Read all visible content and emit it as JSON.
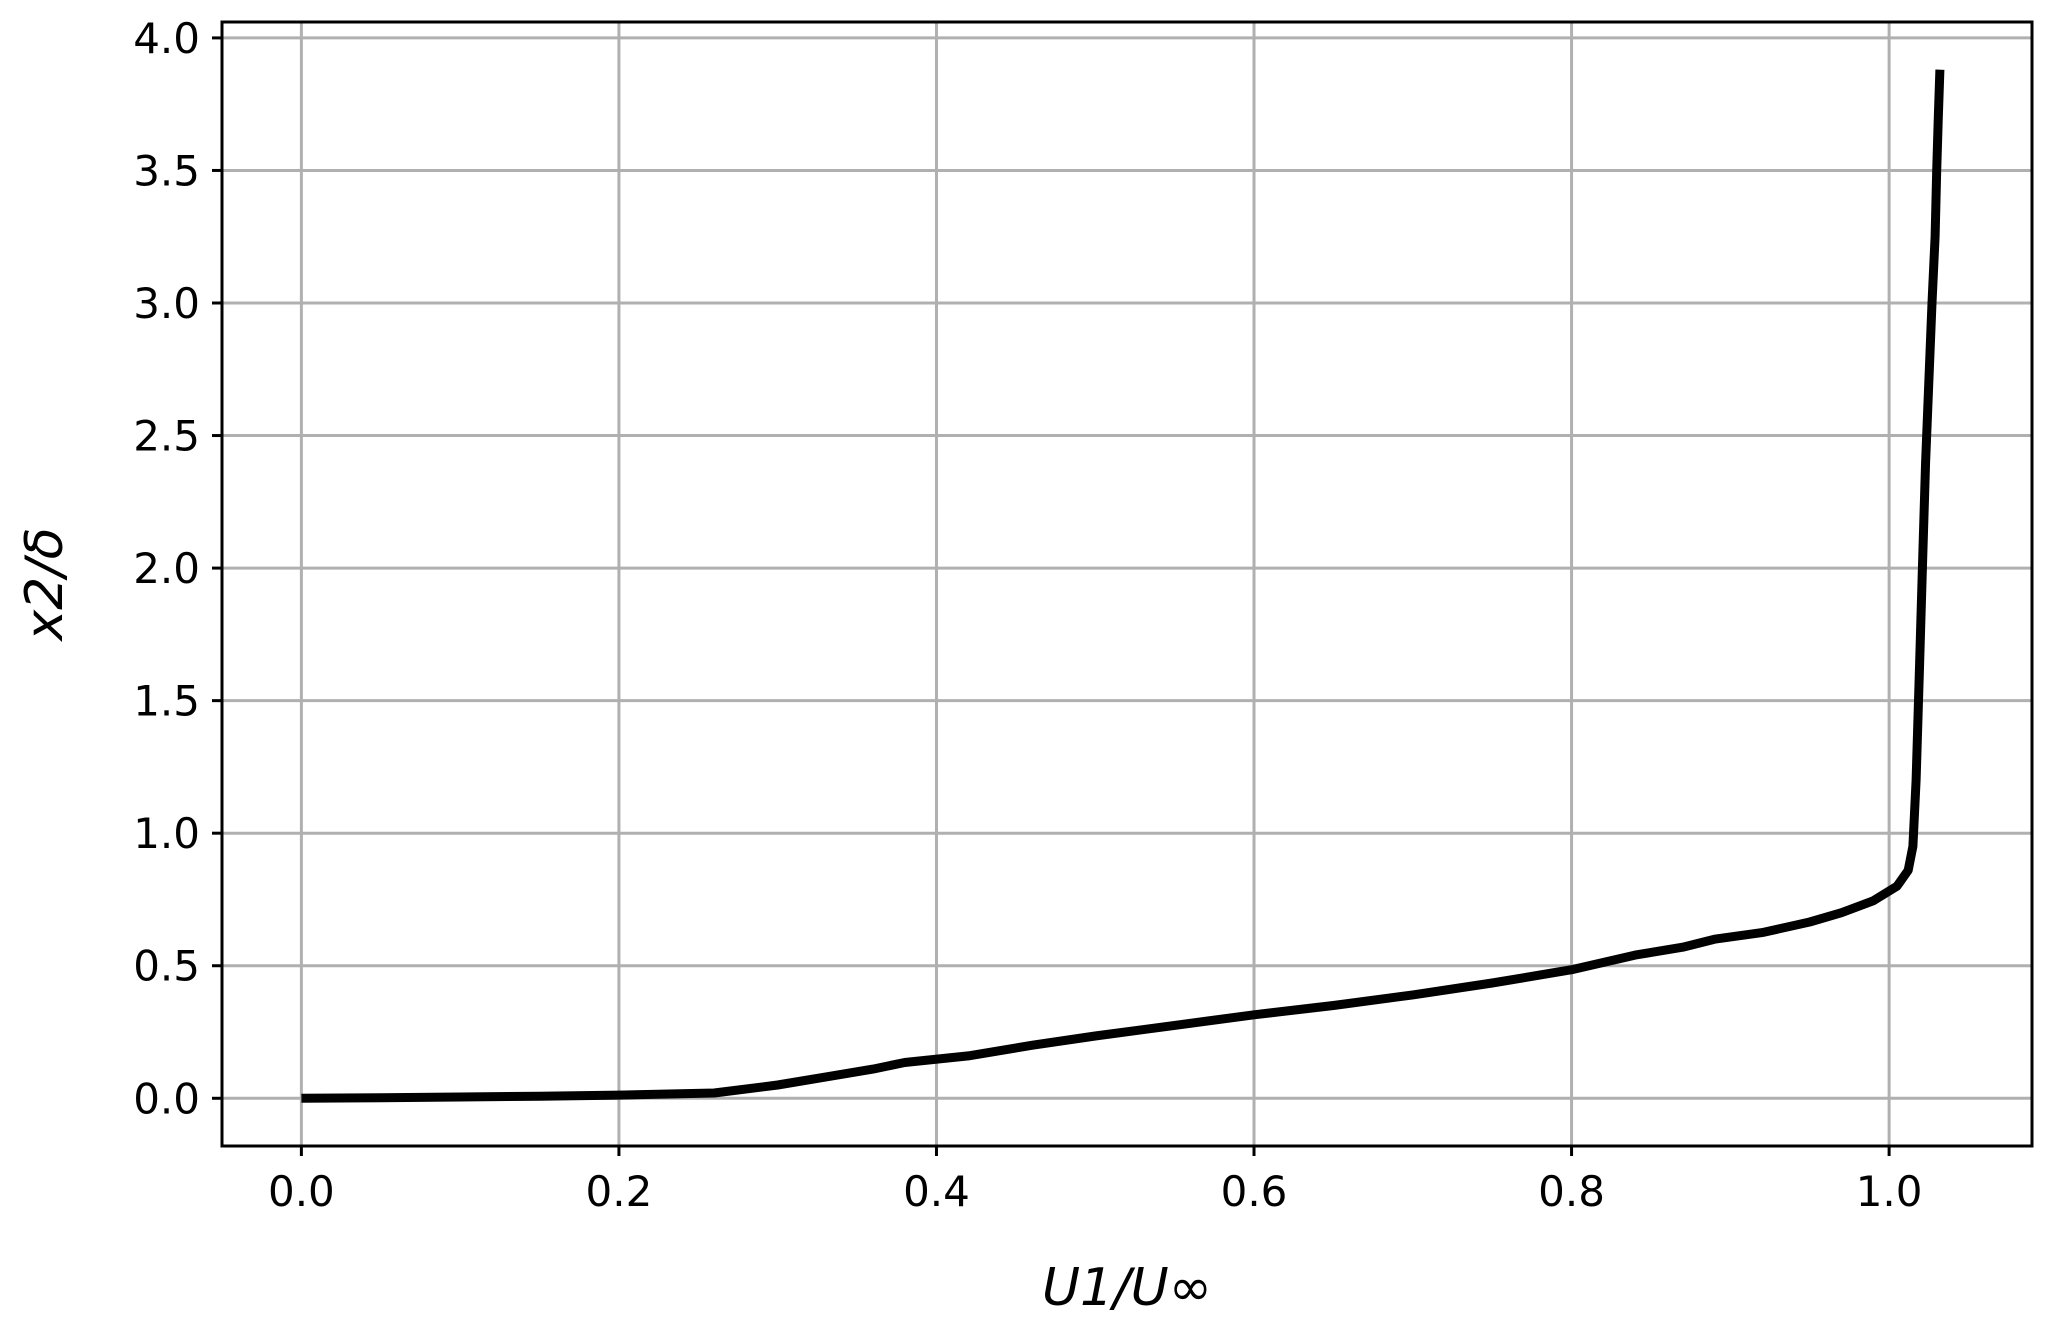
{
  "chart_data": {
    "type": "line",
    "title": "",
    "xlabel": "U1/U∞",
    "ylabel": "x2/δ",
    "xlim": [
      -0.05,
      1.09
    ],
    "ylim": [
      -0.18,
      4.06
    ],
    "xticks": [
      0.0,
      0.2,
      0.4,
      0.6,
      0.8,
      1.0
    ],
    "yticks": [
      0.0,
      0.5,
      1.0,
      1.5,
      2.0,
      2.5,
      3.0,
      3.5,
      4.0
    ],
    "xtick_labels": [
      "0.0",
      "0.2",
      "0.4",
      "0.6",
      "0.8",
      "1.0"
    ],
    "ytick_labels": [
      "0.0",
      "0.5",
      "1.0",
      "1.5",
      "2.0",
      "2.5",
      "3.0",
      "3.5",
      "4.0"
    ],
    "grid": true,
    "legend": "none",
    "line_color": "#000000",
    "grid_color": "#b0b0b0",
    "series": [
      {
        "x": [
          0.0,
          0.05,
          0.1,
          0.15,
          0.2,
          0.26,
          0.3,
          0.33,
          0.36,
          0.38,
          0.42,
          0.46,
          0.5,
          0.55,
          0.6,
          0.65,
          0.7,
          0.75,
          0.8,
          0.84,
          0.87,
          0.89,
          0.92,
          0.95,
          0.97,
          0.99,
          1.005,
          1.012,
          1.015,
          1.017,
          1.019,
          1.021,
          1.023,
          1.025,
          1.027,
          1.029,
          1.03,
          1.031,
          1.032
        ],
        "y": [
          0.0,
          0.002,
          0.005,
          0.008,
          0.012,
          0.02,
          0.05,
          0.08,
          0.11,
          0.135,
          0.16,
          0.2,
          0.235,
          0.275,
          0.315,
          0.35,
          0.39,
          0.435,
          0.485,
          0.54,
          0.57,
          0.6,
          0.625,
          0.665,
          0.7,
          0.745,
          0.8,
          0.86,
          0.95,
          1.2,
          1.6,
          2.0,
          2.4,
          2.7,
          3.0,
          3.25,
          3.5,
          3.7,
          3.88
        ]
      }
    ]
  }
}
